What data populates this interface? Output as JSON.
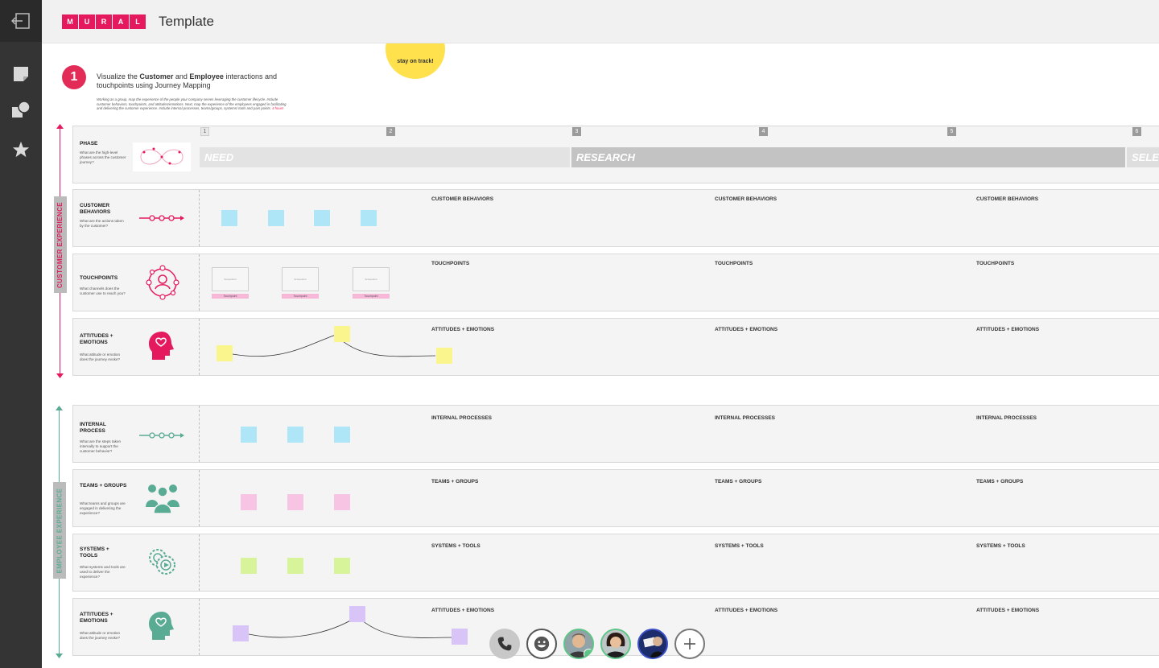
{
  "header": {
    "logo_letters": [
      "M",
      "U",
      "R",
      "A",
      "L"
    ],
    "title": "Template"
  },
  "rail": {
    "icons": [
      "exit-icon",
      "sticky-note-icon",
      "shapes-icon",
      "star-icon"
    ]
  },
  "canvas": {
    "timer_text": "stay on track!",
    "step": {
      "number": "1",
      "title_pre": "Visualize the ",
      "title_bold1": "Customer",
      "title_mid": " and ",
      "title_bold2": "Employee",
      "title_post": " interactions and touchpoints using Journey Mapping",
      "description": "Working as a group, map the experience of the people your company serves leveraging the customer lifecycle. Include customer behaviors, touchpoints, and attitudes/emotions. Next, map the experience of the employees engaged in facilitating and delivering the customer experience. Include internal processes, teams/groups, systems/ tools and pain points.",
      "time": "4 hours"
    },
    "sections": {
      "customer": "CUSTOMER EXPERIENCE",
      "employee": "EMPLOYEE EXPERIENCE"
    },
    "phases": {
      "label": "PHASE",
      "question": "What are the high-level phases across the customer journey?",
      "numbers": [
        "1",
        "2",
        "3",
        "4",
        "5",
        "6"
      ],
      "bands": [
        "NEED",
        "RESEARCH",
        "SELE"
      ]
    },
    "rows": [
      {
        "label": "CUSTOMER BEHAVIORS",
        "question": "What are the actions taken by the customer?",
        "col_title": "CUSTOMER BEHAVIORS"
      },
      {
        "label": "TOUCHPOINTS",
        "question": "What channels does the customer use to reach you?",
        "col_title": "TOUCHPOINTS",
        "frame_text": "Screenshot",
        "tag_text": "Touchpoint"
      },
      {
        "label": "ATTITUDES + EMOTIONS",
        "question": "What attitude or emotion does the journey evoke?",
        "col_title": "ATTITUDES + EMOTIONS"
      },
      {
        "label": "INTERNAL PROCESS",
        "question": "What are the steps taken internally to support the customer behavior?",
        "col_title": "INTERNAL PROCESSES"
      },
      {
        "label": "TEAMS + GROUPS",
        "question": "What teams and groups are engaged in delivering the experience?",
        "col_title": "TEAMS + GROUPS"
      },
      {
        "label": "SYSTEMS + TOOLS",
        "question": "What systems and tools are used to deliver the experience?",
        "col_title": "SYSTEMS + TOOLS"
      },
      {
        "label": "ATTITUDES + EMOTIONS",
        "question": "What attitude or emotion does the journey evoke?",
        "col_title": "ATTITUDES + EMOTIONS"
      }
    ],
    "colors": {
      "pink": "#e5195e",
      "teal": "#5aab93",
      "blue_sticky": "#aee6f7",
      "yellow_sticky": "#fbf58e",
      "pink_sticky": "#f7c4e3",
      "green_sticky": "#d8f49a",
      "purple_sticky": "#d9c4f7"
    }
  },
  "bottombar": {
    "icons": [
      "phone-icon",
      "emoji-icon",
      "add-icon"
    ],
    "avatars": [
      "collaborator-avatar-1",
      "collaborator-avatar-2",
      "collaborator-avatar-3"
    ]
  }
}
